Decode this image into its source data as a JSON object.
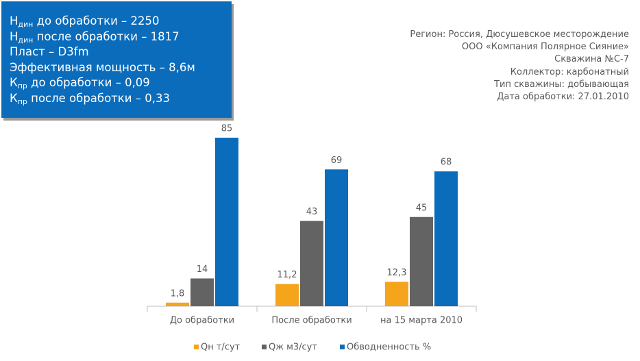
{
  "info_box": [
    {
      "text": "Н",
      "sub": "дин",
      "rest": " до обработки – 2250"
    },
    {
      "text": "Н",
      "sub": "дин",
      "rest": " после обработки – 1817"
    },
    {
      "text": "Пласт – D3fm"
    },
    {
      "text": "Эффективная мощность – 8,6м"
    },
    {
      "text": "К",
      "sub": "пр",
      "rest": " до обработки – 0,09"
    },
    {
      "text": "К",
      "sub": "пр",
      "rest": " после обработки – 0,33"
    }
  ],
  "well_info": [
    "Регион: Россия, Дюсушевское месторождение",
    "ООО «Компания Полярное Сияние»",
    "Скважина  №С-7",
    "Коллектор: карбонатный",
    "Тип скважины: добывающая",
    "Дата обработки: 27.01.2010"
  ],
  "chart_data": {
    "type": "bar",
    "categories": [
      "До обработки",
      "После обработки",
      "на 15 марта 2010"
    ],
    "series": [
      {
        "name": "Qн т/сут",
        "color": "#f5a51c",
        "values": [
          1.8,
          11.2,
          12.3
        ],
        "value_labels": [
          "1,8",
          "11,2",
          "12,3"
        ]
      },
      {
        "name": "Qж м3/сут",
        "color": "#636363",
        "values": [
          14,
          43,
          45
        ]
      },
      {
        "name": "Обводненность %",
        "color": "#0b6cbc",
        "values": [
          85,
          69,
          68
        ]
      }
    ]
  }
}
